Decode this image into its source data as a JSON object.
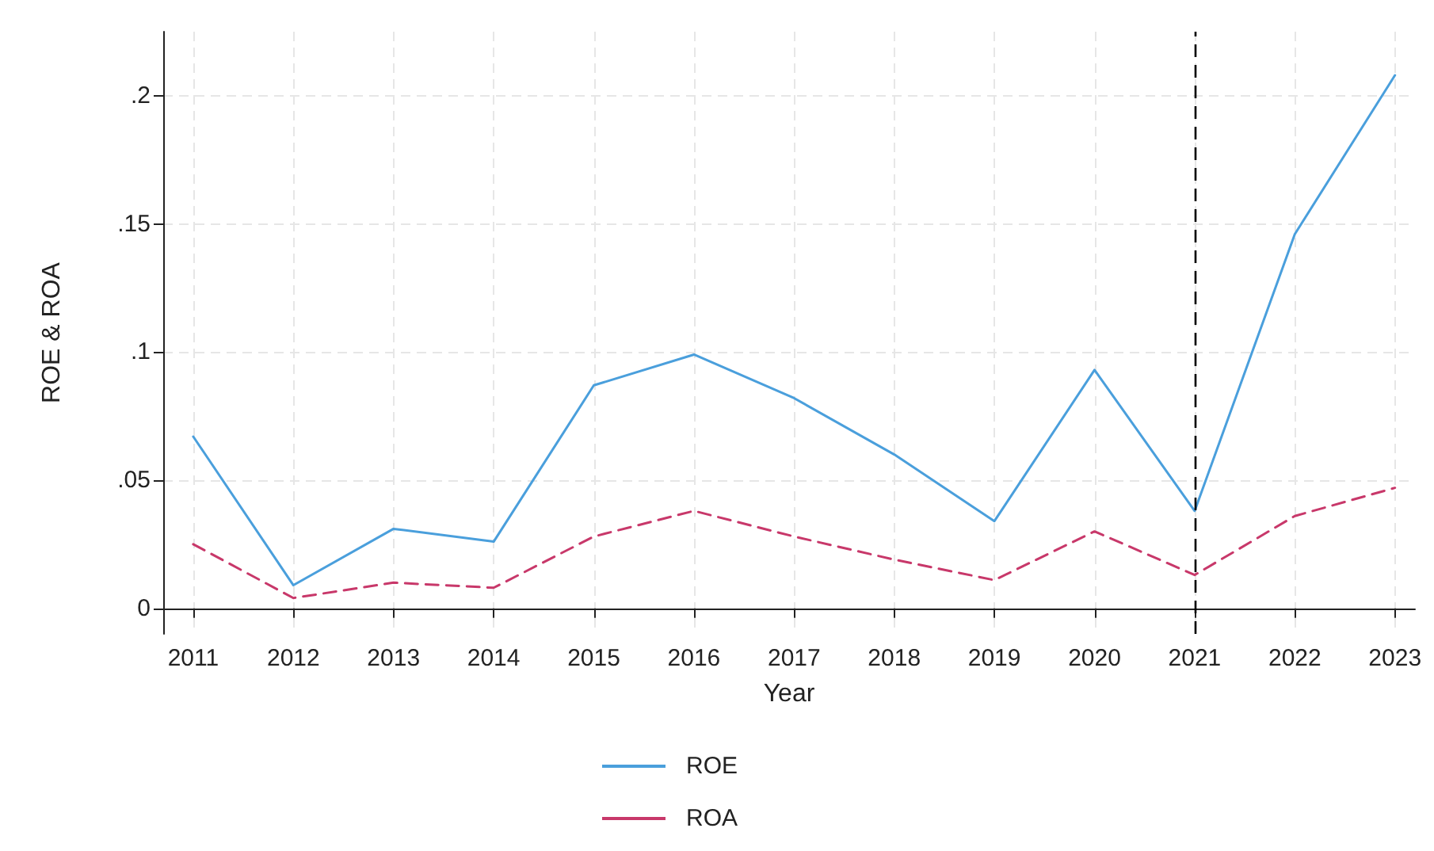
{
  "chart_data": {
    "type": "line",
    "xlabel": "Year",
    "ylabel": "ROE & ROA",
    "x": [
      2011,
      2012,
      2013,
      2014,
      2015,
      2016,
      2017,
      2018,
      2019,
      2020,
      2021,
      2022,
      2023
    ],
    "series": [
      {
        "name": "ROE",
        "color": "#4a9fdc",
        "line_style": "solid",
        "values": [
          0.067,
          0.009,
          0.031,
          0.026,
          0.087,
          0.099,
          0.082,
          0.06,
          0.034,
          0.093,
          0.038,
          0.146,
          0.208
        ]
      },
      {
        "name": "ROA",
        "color": "#c8386a",
        "line_style": "dashed",
        "values": [
          0.025,
          0.004,
          0.01,
          0.008,
          0.028,
          0.038,
          0.028,
          0.019,
          0.011,
          0.03,
          0.013,
          0.036,
          0.047
        ]
      }
    ],
    "xlim": [
      2010.7,
      2023.2
    ],
    "xticks": [
      2011,
      2012,
      2013,
      2014,
      2015,
      2016,
      2017,
      2018,
      2019,
      2020,
      2021,
      2022,
      2023
    ],
    "ylim": [
      -0.01,
      0.225
    ],
    "yticks": [
      {
        "value": 0,
        "label": "0"
      },
      {
        "value": 0.05,
        "label": ".05"
      },
      {
        "value": 0.1,
        "label": ".1"
      },
      {
        "value": 0.15,
        "label": ".15"
      },
      {
        "value": 0.2,
        "label": ".2"
      }
    ],
    "ref_lines": [
      {
        "axis": "x",
        "value": 2021,
        "color": "#000000",
        "line_style": "dashed"
      }
    ],
    "grid": true,
    "legend": "bottom",
    "marker": "none"
  }
}
